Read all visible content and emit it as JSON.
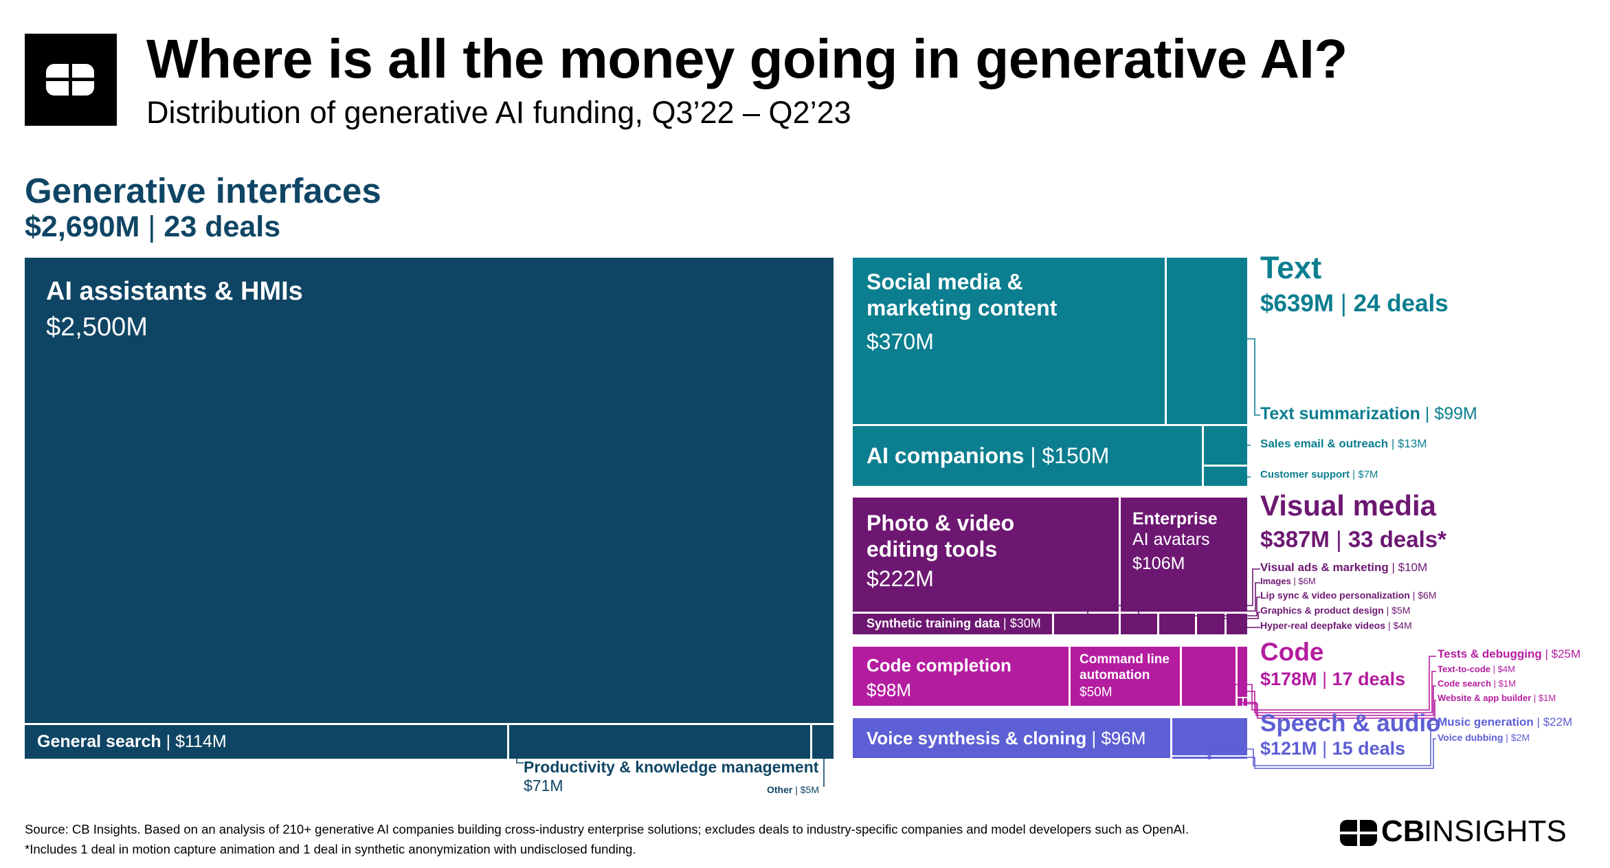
{
  "header": {
    "title": "Where is all the money going in generative AI?",
    "subtitle": "Distribution of generative AI funding, Q3’22 – Q2’23"
  },
  "colors": {
    "generative_interfaces": "#0f4564",
    "text": "#0b7e8f",
    "visual_media": "#6d1772",
    "code": "#b41c9f",
    "speech_audio": "#5d5fd4"
  },
  "groups": {
    "generative_interfaces": {
      "name": "Generative interfaces",
      "value": "$2,690M",
      "deals": "23 deals"
    },
    "text": {
      "name": "Text",
      "value": "$639M",
      "deals": "24 deals"
    },
    "visual_media": {
      "name": "Visual media",
      "value": "$387M",
      "deals": "33 deals*"
    },
    "code": {
      "name": "Code",
      "value": "$178M",
      "deals": "17 deals"
    },
    "speech_audio": {
      "name": "Speech & audio",
      "value": "$121M",
      "deals": "15 deals"
    }
  },
  "segments": {
    "ai_assistants": {
      "label": "AI assistants & HMIs",
      "value": "$2,500M"
    },
    "general_search": {
      "label": "General search",
      "value": "$114M"
    },
    "productivity": {
      "label": "Productivity & knowledge management",
      "value": "$71M"
    },
    "gi_other": {
      "label": "Other",
      "value": "$5M"
    },
    "social_media": {
      "label_line1": "Social media &",
      "label_line2": "marketing content",
      "value": "$370M"
    },
    "text_summarization": {
      "label": "Text summarization",
      "value": "$99M"
    },
    "ai_companions": {
      "label": "AI companions",
      "value": "$150M"
    },
    "sales_email": {
      "label": "Sales email & outreach",
      "value": "$13M"
    },
    "customer_support": {
      "label": "Customer support",
      "value": "$7M"
    },
    "photo_video": {
      "label_line1": "Photo & video",
      "label_line2": "editing tools",
      "value": "$222M"
    },
    "enterprise_avatars": {
      "label_line1": "Enterprise",
      "label_line2": "AI avatars",
      "value": "$106M"
    },
    "synthetic_training": {
      "label": "Synthetic training data",
      "value": "$30M"
    },
    "visual_ads": {
      "label": "Visual ads & marketing",
      "value": "$10M"
    },
    "images": {
      "label": "Images",
      "value": "$6M"
    },
    "lip_sync": {
      "label": "Lip sync & video personalization",
      "value": "$6M"
    },
    "graphics": {
      "label": "Graphics & product design",
      "value": "$5M"
    },
    "deepfake": {
      "label": "Hyper-real deepfake videos",
      "value": "$4M"
    },
    "code_completion": {
      "label": "Code completion",
      "value": "$98M"
    },
    "command_line": {
      "label_line1": "Command line",
      "label_line2": "automation",
      "value": "$50M"
    },
    "tests_debugging": {
      "label": "Tests & debugging",
      "value": "$25M"
    },
    "text_to_code": {
      "label": "Text-to-code",
      "value": "$4M"
    },
    "code_search": {
      "label": "Code search",
      "value": "$1M"
    },
    "website_builder": {
      "label": "Website & app builder",
      "value": "$1M"
    },
    "voice_synthesis": {
      "label": "Voice synthesis & cloning",
      "value": "$96M"
    },
    "music_generation": {
      "label": "Music generation",
      "value": "$22M"
    },
    "voice_dubbing": {
      "label": "Voice dubbing",
      "value": "$2M"
    }
  },
  "chart_data": {
    "type": "treemap",
    "title": "Where is all the money going in generative AI?",
    "subtitle": "Distribution of generative AI funding, Q3’22 – Q2’23",
    "unit": "$M",
    "groups": [
      {
        "name": "Generative interfaces",
        "total": 2690,
        "deals": 23,
        "items": [
          {
            "name": "AI assistants & HMIs",
            "value": 2500
          },
          {
            "name": "General search",
            "value": 114
          },
          {
            "name": "Productivity & knowledge management",
            "value": 71
          },
          {
            "name": "Other",
            "value": 5
          }
        ]
      },
      {
        "name": "Text",
        "total": 639,
        "deals": 24,
        "items": [
          {
            "name": "Social media & marketing content",
            "value": 370
          },
          {
            "name": "AI companions",
            "value": 150
          },
          {
            "name": "Text summarization",
            "value": 99
          },
          {
            "name": "Sales email & outreach",
            "value": 13
          },
          {
            "name": "Customer support",
            "value": 7
          }
        ]
      },
      {
        "name": "Visual media",
        "total": 387,
        "deals": 33,
        "items": [
          {
            "name": "Photo & video editing tools",
            "value": 222
          },
          {
            "name": "Enterprise AI avatars",
            "value": 106
          },
          {
            "name": "Synthetic training data",
            "value": 30
          },
          {
            "name": "Visual ads & marketing",
            "value": 10
          },
          {
            "name": "Images",
            "value": 6
          },
          {
            "name": "Lip sync & video personalization",
            "value": 6
          },
          {
            "name": "Graphics & product design",
            "value": 5
          },
          {
            "name": "Hyper-real deepfake videos",
            "value": 4
          }
        ]
      },
      {
        "name": "Code",
        "total": 178,
        "deals": 17,
        "items": [
          {
            "name": "Code completion",
            "value": 98
          },
          {
            "name": "Command line automation",
            "value": 50
          },
          {
            "name": "Tests & debugging",
            "value": 25
          },
          {
            "name": "Text-to-code",
            "value": 4
          },
          {
            "name": "Code search",
            "value": 1
          },
          {
            "name": "Website & app builder",
            "value": 1
          }
        ]
      },
      {
        "name": "Speech & audio",
        "total": 121,
        "deals": 15,
        "items": [
          {
            "name": "Voice synthesis & cloning",
            "value": 96
          },
          {
            "name": "Music generation",
            "value": 22
          },
          {
            "name": "Voice dubbing",
            "value": 2
          }
        ]
      }
    ]
  },
  "footer": {
    "source": "Source: CB Insights. Based on an analysis of 210+ generative AI companies building cross-industry enterprise solutions; excludes deals to industry-specific companies and model developers such as OpenAI.",
    "note": "*Includes 1 deal in motion capture animation and 1 deal in synthetic anonymization with undisclosed funding.",
    "brand_bold": "CB",
    "brand_light": "INSIGHTS"
  }
}
